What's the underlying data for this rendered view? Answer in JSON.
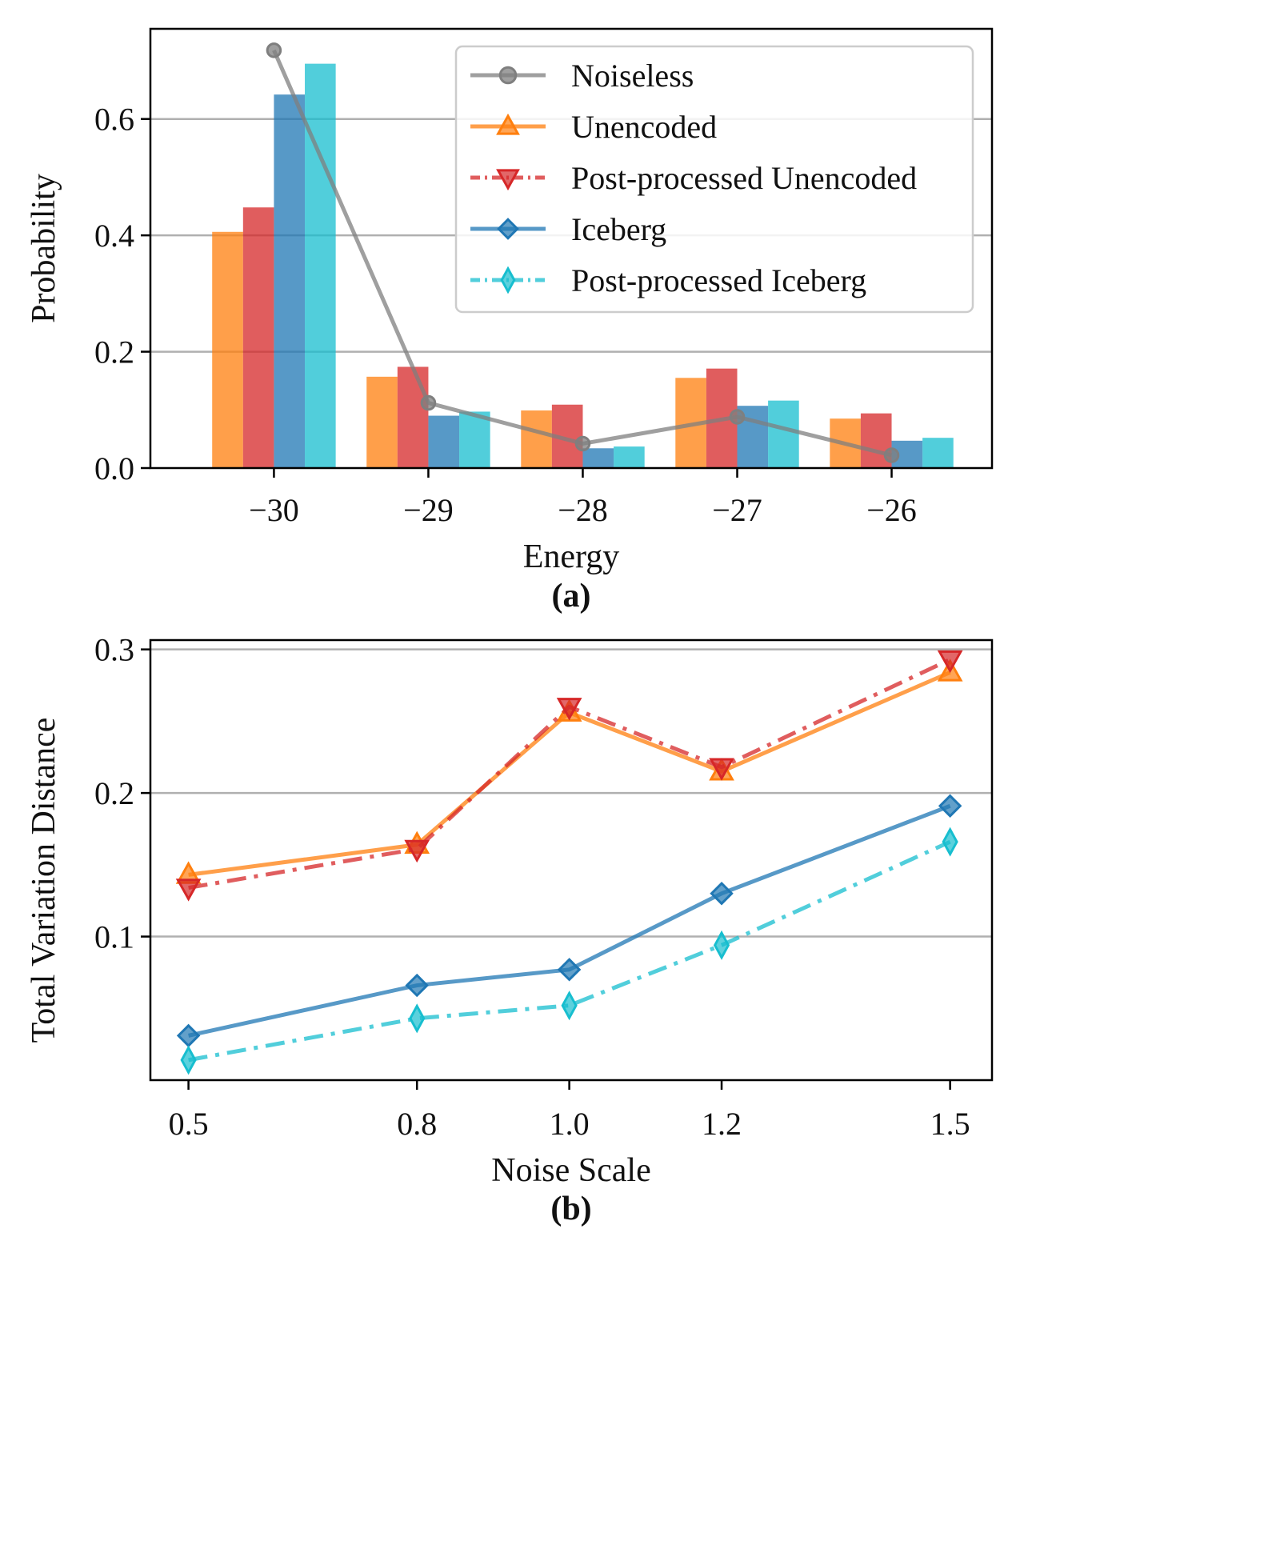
{
  "chart_data": [
    {
      "id": "a",
      "type": "bar",
      "panel_label": "(a)",
      "xlabel": "Energy",
      "ylabel": "Probability",
      "categories": [
        "−30",
        "−29",
        "−28",
        "−27",
        "−26"
      ],
      "x_values": [
        -30,
        -29,
        -28,
        -27,
        -26
      ],
      "ylim": [
        0,
        0.755
      ],
      "yticks": [
        0.0,
        0.2,
        0.4,
        0.6
      ],
      "ytick_labels": [
        "0.0",
        "0.2",
        "0.4",
        "0.6"
      ],
      "grid": "y",
      "legend_position": "top-right",
      "series": [
        {
          "name": "Unencoded",
          "kind": "bar",
          "color": "#ff7f0e",
          "values": [
            0.406,
            0.157,
            0.099,
            0.155,
            0.085
          ]
        },
        {
          "name": "Post-processed Unencoded",
          "kind": "bar",
          "color": "#d62728",
          "values": [
            0.448,
            0.174,
            0.109,
            0.171,
            0.094
          ]
        },
        {
          "name": "Iceberg",
          "kind": "bar",
          "color": "#1f77b4",
          "values": [
            0.642,
            0.09,
            0.034,
            0.107,
            0.047
          ]
        },
        {
          "name": "Post-processed Iceberg",
          "kind": "bar",
          "color": "#17becf",
          "values": [
            0.695,
            0.097,
            0.037,
            0.116,
            0.052
          ]
        },
        {
          "name": "Noiseless",
          "kind": "line",
          "color": "#7f7f7f",
          "values": [
            0.718,
            0.112,
            0.042,
            0.088,
            0.022
          ]
        }
      ],
      "legend": [
        "Noiseless",
        "Unencoded",
        "Post-processed Unencoded",
        "Iceberg",
        "Post-processed Iceberg"
      ]
    },
    {
      "id": "b",
      "type": "line",
      "panel_label": "(b)",
      "xlabel": "Noise Scale",
      "ylabel": "Total Variation Distance",
      "x": [
        0.5,
        0.8,
        1.0,
        1.2,
        1.5
      ],
      "xtick_labels": [
        "0.5",
        "0.8",
        "1.0",
        "1.2",
        "1.5"
      ],
      "xlim": [
        0.45,
        1.555
      ],
      "ylim": [
        0.0,
        0.3065
      ],
      "yticks": [
        0.1,
        0.2,
        0.3
      ],
      "ytick_labels": [
        "0.1",
        "0.2",
        "0.3"
      ],
      "grid": "y",
      "series": [
        {
          "name": "Unencoded",
          "color": "#ff7f0e",
          "marker": "triangle-up",
          "linestyle": "solid",
          "values": [
            0.143,
            0.164,
            0.256,
            0.215,
            0.284
          ]
        },
        {
          "name": "Post-processed Unencoded",
          "color": "#d62728",
          "marker": "triangle-down",
          "linestyle": "dashdot",
          "values": [
            0.134,
            0.161,
            0.26,
            0.218,
            0.293
          ]
        },
        {
          "name": "Iceberg",
          "color": "#1f77b4",
          "marker": "diamond",
          "linestyle": "solid",
          "values": [
            0.031,
            0.066,
            0.077,
            0.13,
            0.191
          ]
        },
        {
          "name": "Post-processed Iceberg",
          "color": "#17becf",
          "marker": "thin-diamond",
          "linestyle": "dashdot",
          "values": [
            0.014,
            0.043,
            0.052,
            0.094,
            0.166
          ]
        }
      ]
    }
  ]
}
